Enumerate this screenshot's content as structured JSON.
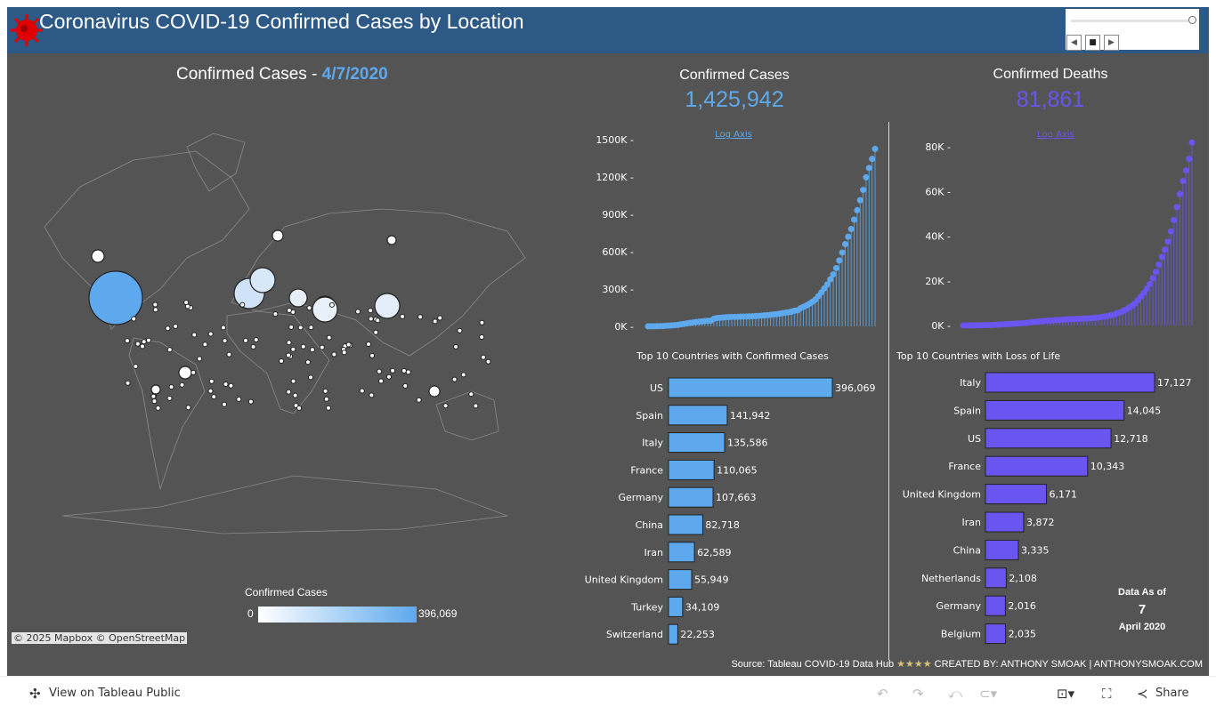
{
  "header": {
    "title": "Coronavirus COVID-19 Confirmed Cases by Location",
    "logo_icon": "virus-icon",
    "logo_color": "#e00000"
  },
  "date_slider": {
    "value": "4/7/2020",
    "prev_icon": "prev-icon",
    "stop_icon": "stop-icon",
    "next_icon": "next-icon"
  },
  "map": {
    "title_prefix": "Confirmed Cases - ",
    "title_date": "4/7/2020",
    "legend_title": "Confirmed Cases",
    "legend_min": "0",
    "legend_max": "396,069",
    "attribution": "© 2025 Mapbox © OpenStreetMap"
  },
  "kpis": {
    "cases_label": "Confirmed Cases",
    "cases_value": "1,425,942",
    "deaths_label": "Confirmed Deaths",
    "deaths_value": "81,861"
  },
  "colors": {
    "cases": "#5ea9ee",
    "deaths": "#6b55f0",
    "header": "#2c5985",
    "background": "#545454"
  },
  "chart_data": [
    {
      "type": "line",
      "title": "Confirmed Cases",
      "link": "Log Axis",
      "x_range": [
        "1/22/2020",
        "4/7/2020"
      ],
      "ylim": [
        0,
        1500000
      ],
      "yticks": [
        "0K",
        "300K",
        "600K",
        "900K",
        "1200K",
        "1500K"
      ],
      "values": [
        555,
        654,
        941,
        1434,
        2118,
        2927,
        5578,
        6166,
        8234,
        9927,
        12038,
        16787,
        19881,
        23892,
        27635,
        30817,
        34391,
        37120,
        40150,
        42762,
        44802,
        45221,
        60368,
        66885,
        69030,
        71224,
        73258,
        75136,
        75639,
        76197,
        76819,
        78572,
        78958,
        79561,
        80406,
        81388,
        82746,
        84112,
        86011,
        88369,
        90306,
        92840,
        95120,
        97886,
        101801,
        105847,
        109821,
        113590,
        118620,
        125875,
        128352,
        145205,
        156101,
        167454,
        181574,
        197102,
        214821,
        242570,
        272208,
        304507,
        336953,
        378235,
        418045,
        467653,
        529591,
        593291,
        660693,
        720140,
        782389,
        857487,
        932605,
        1013466,
        1095917,
        1197405,
        1272115,
        1345101,
        1425942
      ]
    },
    {
      "type": "line",
      "title": "Confirmed Deaths",
      "link": "Log Axis",
      "x_range": [
        "1/22/2020",
        "4/7/2020"
      ],
      "ylim": [
        0,
        80000
      ],
      "yticks": [
        "0K",
        "20K",
        "40K",
        "60K",
        "80K"
      ],
      "values": [
        17,
        18,
        26,
        42,
        56,
        82,
        131,
        133,
        171,
        213,
        259,
        362,
        426,
        492,
        564,
        634,
        719,
        806,
        906,
        1013,
        1113,
        1118,
        1371,
        1523,
        1666,
        1770,
        1868,
        2007,
        2122,
        2247,
        2251,
        2458,
        2469,
        2629,
        2708,
        2770,
        2814,
        2872,
        2941,
        2996,
        3085,
        3160,
        3254,
        3348,
        3460,
        3558,
        3802,
        3988,
        4262,
        4615,
        4720,
        5404,
        5819,
        6440,
        7126,
        7905,
        8733,
        9867,
        11299,
        12973,
        14651,
        16505,
        18625,
        21181,
        23970,
        27198,
        30652,
        33925,
        37582,
        42107,
        47180,
        52983,
        58787,
        64606,
        69374,
        74565,
        81861
      ]
    },
    {
      "type": "bar",
      "title": "Top 10 Countries with Confirmed Cases",
      "categories": [
        "US",
        "Spain",
        "Italy",
        "France",
        "Germany",
        "China",
        "Iran",
        "United Kingdom",
        "Turkey",
        "Switzerland"
      ],
      "values": [
        396069,
        141942,
        135586,
        110065,
        107663,
        82718,
        62589,
        55949,
        34109,
        22253
      ],
      "labels": [
        "396,069",
        "141,942",
        "135,586",
        "110,065",
        "107,663",
        "82,718",
        "62,589",
        "55,949",
        "34,109",
        "22,253"
      ]
    },
    {
      "type": "bar",
      "title": "Top 10 Countries with Loss of Life",
      "categories": [
        "Italy",
        "Spain",
        "US",
        "France",
        "United Kingdom",
        "Iran",
        "China",
        "Netherlands",
        "Germany",
        "Belgium"
      ],
      "values": [
        17127,
        14045,
        12718,
        10343,
        6171,
        3872,
        3335,
        2108,
        2016,
        2035
      ],
      "labels": [
        "17,127",
        "14,045",
        "12,718",
        "10,343",
        "6,171",
        "3,872",
        "3,335",
        "2,108",
        "2,016",
        "2,035"
      ]
    }
  ],
  "data_as_of": {
    "label": "Data As of",
    "day": "7",
    "month_year": "April 2020"
  },
  "footer": {
    "source": "Source: Tableau COVID-19 Data Hub",
    "stars": "★★★★",
    "credit": "CREATED BY: ANTHONY SMOAK | ANTHONYSMOAK.COM"
  },
  "toolbar": {
    "view_label": "View on Tableau Public",
    "share_label": "Share",
    "undo_icon": "undo-icon",
    "redo_icon": "redo-icon",
    "revert_icon": "revert-icon",
    "refresh_icon": "refresh-icon",
    "download_icon": "download-icon",
    "fullscreen_icon": "fullscreen-icon",
    "share_icon": "share-icon"
  }
}
